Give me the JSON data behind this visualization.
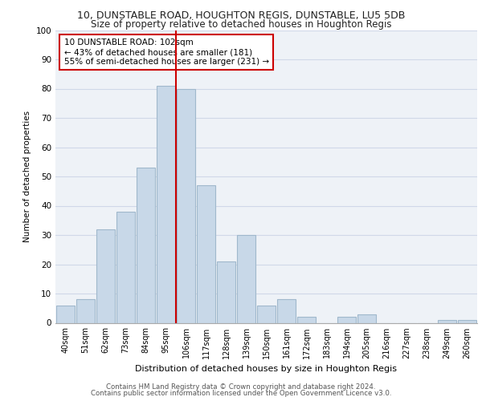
{
  "title1": "10, DUNSTABLE ROAD, HOUGHTON REGIS, DUNSTABLE, LU5 5DB",
  "title2": "Size of property relative to detached houses in Houghton Regis",
  "xlabel": "Distribution of detached houses by size in Houghton Regis",
  "ylabel": "Number of detached properties",
  "categories": [
    "40sqm",
    "51sqm",
    "62sqm",
    "73sqm",
    "84sqm",
    "95sqm",
    "106sqm",
    "117sqm",
    "128sqm",
    "139sqm",
    "150sqm",
    "161sqm",
    "172sqm",
    "183sqm",
    "194sqm",
    "205sqm",
    "216sqm",
    "227sqm",
    "238sqm",
    "249sqm",
    "260sqm"
  ],
  "values": [
    6,
    8,
    32,
    38,
    53,
    81,
    80,
    47,
    21,
    30,
    6,
    8,
    2,
    0,
    2,
    3,
    0,
    0,
    0,
    1,
    1
  ],
  "bar_color": "#c8d8e8",
  "bar_edge_color": "#a0b8cc",
  "vline_x_index": 5.5,
  "annotation_text": "10 DUNSTABLE ROAD: 102sqm\n← 43% of detached houses are smaller (181)\n55% of semi-detached houses are larger (231) →",
  "annotation_box_color": "#ffffff",
  "annotation_box_edge": "#cc0000",
  "grid_color": "#d0d8e8",
  "background_color": "#eef2f7",
  "footer1": "Contains HM Land Registry data © Crown copyright and database right 2024.",
  "footer2": "Contains public sector information licensed under the Open Government Licence v3.0.",
  "ylim": [
    0,
    100
  ],
  "yticks": [
    0,
    10,
    20,
    30,
    40,
    50,
    60,
    70,
    80,
    90,
    100
  ]
}
